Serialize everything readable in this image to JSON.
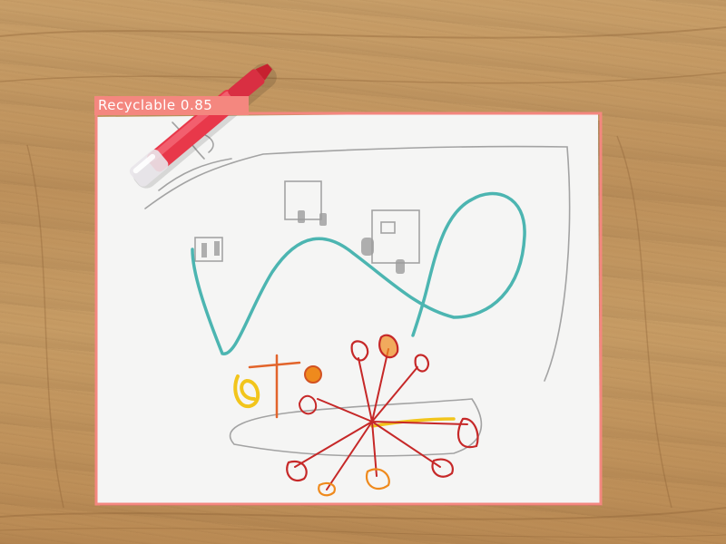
{
  "detection": {
    "class_label": "Recyclable",
    "confidence": "0.85",
    "box_color": "#f4877f"
  },
  "colors": {
    "paper": "#f5f5f4",
    "crayon_red": "#e8384a",
    "teal": "#3aaeaa",
    "pencil": "#9a9a9a",
    "drawing_red": "#c62828",
    "drawing_orange": "#ef8a1d",
    "drawing_yellow": "#f2c51c"
  }
}
